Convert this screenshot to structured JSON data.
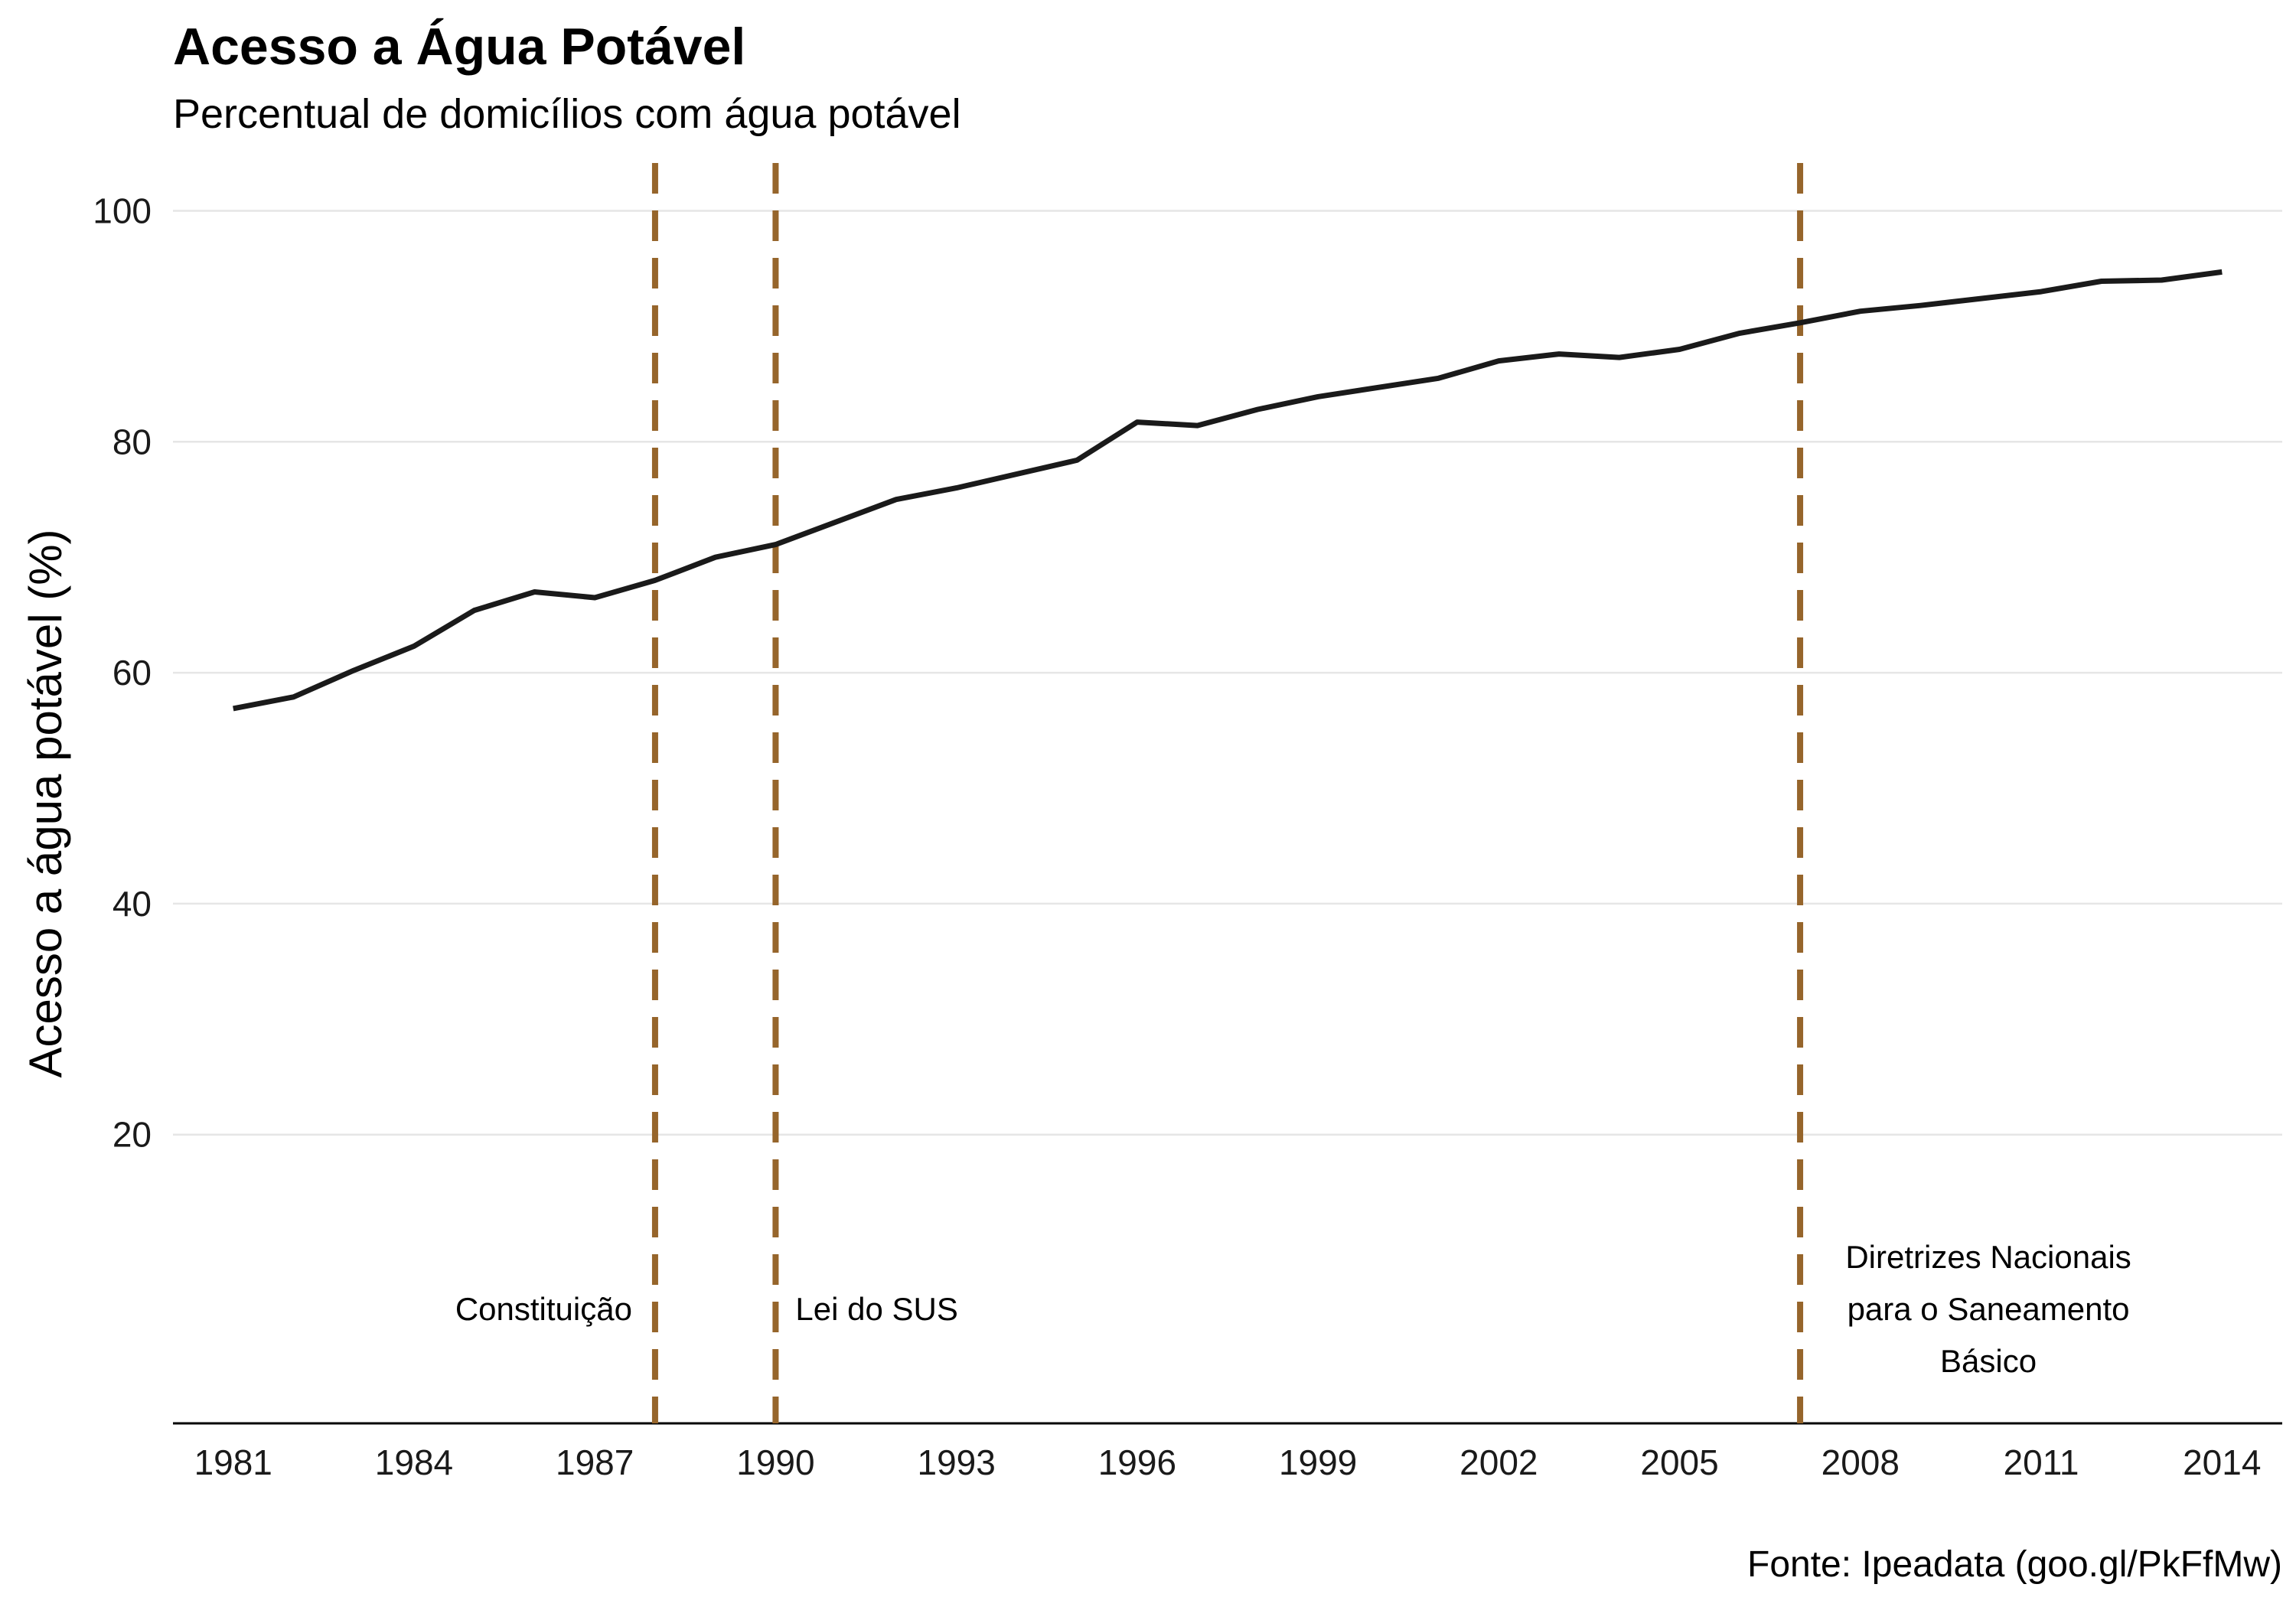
{
  "chart_data": {
    "type": "line",
    "title": "Acesso a Água Potável",
    "subtitle": "Percentual de domicílios com água potável",
    "caption": "Fonte: Ipeadata (goo.gl/PkFfMw)",
    "xlabel": "",
    "ylabel": "Acesso a água potável (%)",
    "xlim": [
      1980,
      2015
    ],
    "ylim": [
      -5,
      105
    ],
    "x_ticks": [
      1981,
      1984,
      1987,
      1990,
      1993,
      1996,
      1999,
      2002,
      2005,
      2008,
      2011,
      2014
    ],
    "y_ticks": [
      20,
      40,
      60,
      80,
      100
    ],
    "grid": "horizontal",
    "line_color": "#1a1a1a",
    "grid_color": "#e6e6e6",
    "series": [
      {
        "x": [
          1981,
          1982,
          1983,
          1984,
          1985,
          1986,
          1987,
          1988,
          1989,
          1990,
          1992,
          1993,
          1995,
          1996,
          1997,
          1998,
          1999,
          2001,
          2002,
          2003,
          2004,
          2005,
          2006,
          2007,
          2008,
          2009,
          2011,
          2012,
          2013,
          2014
        ],
        "y": [
          56.9,
          57.9,
          60.2,
          62.3,
          65.4,
          67.0,
          66.5,
          68.0,
          70.0,
          71.1,
          75.0,
          76.0,
          78.4,
          81.7,
          81.4,
          82.8,
          83.9,
          85.5,
          87.0,
          87.6,
          87.3,
          88.0,
          89.4,
          90.3,
          91.3,
          91.8,
          93.0,
          93.9,
          94.0,
          94.7
        ]
      }
    ],
    "annotations": {
      "line_color": "#96652b",
      "items": [
        {
          "x": 1988,
          "lines": [
            "Constituição"
          ],
          "side": "left",
          "y": 5
        },
        {
          "x": 1990,
          "lines": [
            "Lei do SUS"
          ],
          "side": "right",
          "y": 5
        },
        {
          "x": 2007,
          "lines": [
            "Diretrizes Nacionais",
            "para o Saneamento",
            "Básico"
          ],
          "side": "right",
          "y": 5
        }
      ]
    }
  }
}
